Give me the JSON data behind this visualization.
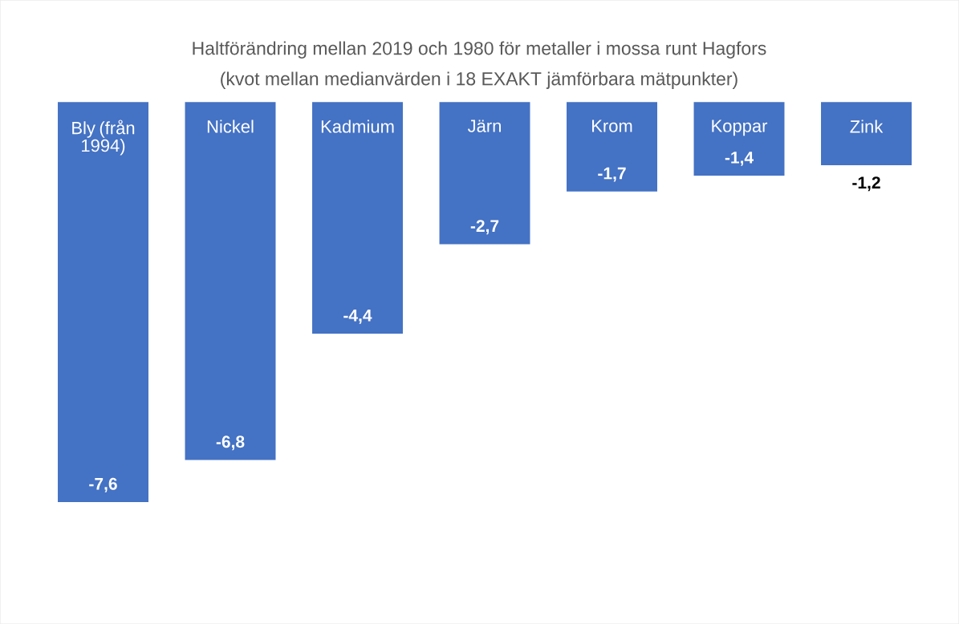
{
  "chart_data": {
    "type": "bar",
    "title": "Haltförändring mellan 2019 och 1980 för metaller i mossa runt Hagfors",
    "subtitle": "(kvot mellan medianvärden i 18 EXAKT jämförbara mätpunkter)",
    "categories": [
      "Bly (från 1994)",
      "Nickel",
      "Kadmium",
      "Järn",
      "Krom",
      "Koppar",
      "Zink"
    ],
    "values": [
      -7.6,
      -6.8,
      -4.4,
      -2.7,
      -1.7,
      -1.4,
      -1.2
    ],
    "value_labels": [
      "-7,6",
      "-6,8",
      "-4,4",
      "-2,7",
      "-1,7",
      "-1,4",
      "-1,2"
    ],
    "color": "#4472c4"
  }
}
